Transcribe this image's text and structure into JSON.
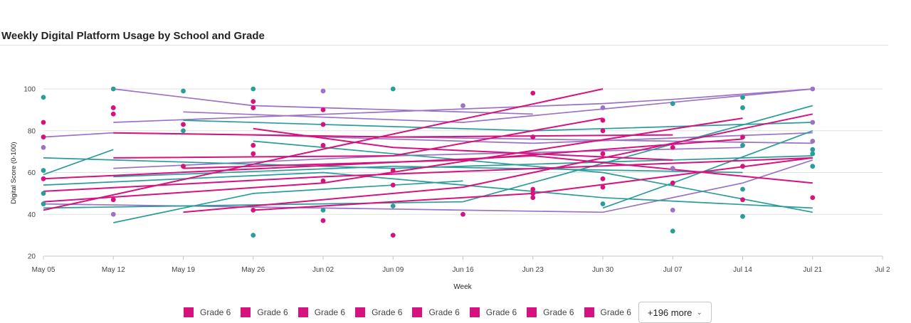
{
  "title": "Weekly Digital Platform Usage by School and Grade",
  "colors": {
    "teal": "#2a9d9a",
    "purple": "#9b72c4",
    "magenta": "#d6127f"
  },
  "legend": {
    "items": [
      {
        "label": "Grade 6",
        "color": "#d6127f"
      },
      {
        "label": "Grade 6",
        "color": "#d6127f"
      },
      {
        "label": "Grade 6",
        "color": "#d6127f"
      },
      {
        "label": "Grade 6",
        "color": "#d6127f"
      },
      {
        "label": "Grade 6",
        "color": "#d6127f"
      },
      {
        "label": "Grade 6",
        "color": "#d6127f"
      },
      {
        "label": "Grade 6",
        "color": "#d6127f"
      },
      {
        "label": "Grade 6",
        "color": "#d6127f"
      }
    ],
    "more_label": "+196 more",
    "more_icon": "chevron-down-icon"
  },
  "chart_data": {
    "type": "line",
    "xlabel": "Week",
    "ylabel": "Digital Score (0-100)",
    "ylim": [
      20,
      100
    ],
    "yticks": [
      20,
      40,
      60,
      80,
      100
    ],
    "xlim": [
      "2024-05-05",
      "2024-07-28"
    ],
    "xticks": [
      "May 05",
      "May 12",
      "May 19",
      "May 26",
      "Jun 02",
      "Jun 09",
      "Jun 16",
      "Jun 23",
      "Jun 30",
      "Jul 07",
      "Jul 14",
      "Jul 21",
      "Jul 2"
    ],
    "grid": true,
    "legend_position": "bottom",
    "series_visible_note": "many overlapping school/grade series",
    "series": [
      {
        "color": "#9b72c4",
        "x": [
          "2024-05-05",
          "2024-05-12",
          "2024-07-21"
        ],
        "y": [
          77,
          79,
          74
        ]
      },
      {
        "color": "#9b72c4",
        "x": [
          "2024-05-12",
          "2024-05-26",
          "2024-06-23"
        ],
        "y": [
          100,
          92,
          88
        ]
      },
      {
        "color": "#9b72c4",
        "x": [
          "2024-05-19",
          "2024-06-16",
          "2024-07-21"
        ],
        "y": [
          89,
          84,
          100
        ]
      },
      {
        "color": "#9b72c4",
        "x": [
          "2024-05-12",
          "2024-06-30",
          "2024-07-07",
          "2024-07-21"
        ],
        "y": [
          84,
          93,
          95,
          100
        ]
      },
      {
        "color": "#9b72c4",
        "x": [
          "2024-05-05",
          "2024-06-02",
          "2024-06-30"
        ],
        "y": [
          45,
          43,
          41
        ]
      },
      {
        "color": "#9b72c4",
        "x": [
          "2024-05-12",
          "2024-06-09",
          "2024-07-14"
        ],
        "y": [
          62,
          68,
          72
        ]
      },
      {
        "color": "#9b72c4",
        "x": [
          "2024-05-26",
          "2024-06-23",
          "2024-07-21"
        ],
        "y": [
          78,
          74,
          79
        ]
      },
      {
        "color": "#9b72c4",
        "x": [
          "2024-06-30",
          "2024-07-14",
          "2024-07-21"
        ],
        "y": [
          41,
          55,
          66
        ]
      },
      {
        "color": "#2a9d9a",
        "x": [
          "2024-05-05",
          "2024-05-12"
        ],
        "y": [
          59,
          71
        ]
      },
      {
        "color": "#2a9d9a",
        "x": [
          "2024-05-05",
          "2024-06-09",
          "2024-07-21"
        ],
        "y": [
          67,
          62,
          68
        ]
      },
      {
        "color": "#2a9d9a",
        "x": [
          "2024-05-12",
          "2024-05-26",
          "2024-06-16"
        ],
        "y": [
          36,
          50,
          56
        ]
      },
      {
        "color": "#2a9d9a",
        "x": [
          "2024-05-05",
          "2024-06-16",
          "2024-07-21"
        ],
        "y": [
          43,
          46,
          92
        ]
      },
      {
        "color": "#2a9d9a",
        "x": [
          "2024-05-19",
          "2024-06-23",
          "2024-07-21"
        ],
        "y": [
          85,
          80,
          84
        ]
      },
      {
        "color": "#2a9d9a",
        "x": [
          "2024-05-12",
          "2024-06-09",
          "2024-07-14"
        ],
        "y": [
          58,
          63,
          60
        ]
      },
      {
        "color": "#2a9d9a",
        "x": [
          "2024-05-26",
          "2024-06-30",
          "2024-07-21"
        ],
        "y": [
          75,
          60,
          41
        ]
      },
      {
        "color": "#2a9d9a",
        "x": [
          "2024-06-30",
          "2024-07-07",
          "2024-07-21"
        ],
        "y": [
          43,
          55,
          80
        ]
      },
      {
        "color": "#2a9d9a",
        "x": [
          "2024-05-05",
          "2024-06-02",
          "2024-06-30",
          "2024-07-21"
        ],
        "y": [
          54,
          60,
          48,
          43
        ]
      },
      {
        "color": "#d6127f",
        "x": [
          "2024-05-05",
          "2024-05-26",
          "2024-06-30"
        ],
        "y": [
          42,
          64,
          100
        ]
      },
      {
        "color": "#d6127f",
        "x": [
          "2024-05-05",
          "2024-06-02",
          "2024-07-21"
        ],
        "y": [
          51,
          58,
          67
        ]
      },
      {
        "color": "#d6127f",
        "x": [
          "2024-05-12",
          "2024-06-09",
          "2024-07-07"
        ],
        "y": [
          79,
          77,
          78
        ]
      },
      {
        "color": "#d6127f",
        "x": [
          "2024-05-19",
          "2024-06-16",
          "2024-07-21"
        ],
        "y": [
          41,
          53,
          88
        ]
      },
      {
        "color": "#d6127f",
        "x": [
          "2024-05-05",
          "2024-06-02",
          "2024-07-14"
        ],
        "y": [
          46,
          55,
          86
        ]
      },
      {
        "color": "#d6127f",
        "x": [
          "2024-05-12",
          "2024-06-09",
          "2024-06-30"
        ],
        "y": [
          67,
          68,
          86
        ]
      },
      {
        "color": "#d6127f",
        "x": [
          "2024-05-26",
          "2024-06-23",
          "2024-07-21"
        ],
        "y": [
          42,
          50,
          67
        ]
      },
      {
        "color": "#d6127f",
        "x": [
          "2024-05-19",
          "2024-06-16",
          "2024-07-14"
        ],
        "y": [
          62,
          66,
          76
        ]
      },
      {
        "color": "#d6127f",
        "x": [
          "2024-05-05",
          "2024-06-23",
          "2024-07-21"
        ],
        "y": [
          57,
          68,
          55
        ]
      },
      {
        "color": "#d6127f",
        "x": [
          "2024-05-26",
          "2024-06-09",
          "2024-07-07"
        ],
        "y": [
          81,
          72,
          66
        ]
      }
    ],
    "points": [
      {
        "x": "2024-05-05",
        "y": 96,
        "color": "#2a9d9a"
      },
      {
        "x": "2024-05-05",
        "y": 84,
        "color": "#d6127f"
      },
      {
        "x": "2024-05-05",
        "y": 77,
        "color": "#d6127f"
      },
      {
        "x": "2024-05-05",
        "y": 72,
        "color": "#9b72c4"
      },
      {
        "x": "2024-05-05",
        "y": 61,
        "color": "#2a9d9a"
      },
      {
        "x": "2024-05-05",
        "y": 57,
        "color": "#d6127f"
      },
      {
        "x": "2024-05-05",
        "y": 50,
        "color": "#2a9d9a"
      },
      {
        "x": "2024-05-05",
        "y": 45,
        "color": "#2a9d9a"
      },
      {
        "x": "2024-05-12",
        "y": 100,
        "color": "#2a9d9a"
      },
      {
        "x": "2024-05-12",
        "y": 91,
        "color": "#d6127f"
      },
      {
        "x": "2024-05-12",
        "y": 88,
        "color": "#d6127f"
      },
      {
        "x": "2024-05-12",
        "y": 47,
        "color": "#d6127f"
      },
      {
        "x": "2024-05-12",
        "y": 40,
        "color": "#9b72c4"
      },
      {
        "x": "2024-05-19",
        "y": 99,
        "color": "#2a9d9a"
      },
      {
        "x": "2024-05-19",
        "y": 83,
        "color": "#d6127f"
      },
      {
        "x": "2024-05-19",
        "y": 80,
        "color": "#2a9d9a"
      },
      {
        "x": "2024-05-19",
        "y": 63,
        "color": "#d6127f"
      },
      {
        "x": "2024-05-26",
        "y": 100,
        "color": "#2a9d9a"
      },
      {
        "x": "2024-05-26",
        "y": 94,
        "color": "#d6127f"
      },
      {
        "x": "2024-05-26",
        "y": 91,
        "color": "#d6127f"
      },
      {
        "x": "2024-05-26",
        "y": 73,
        "color": "#d6127f"
      },
      {
        "x": "2024-05-26",
        "y": 69,
        "color": "#d6127f"
      },
      {
        "x": "2024-05-26",
        "y": 42,
        "color": "#d6127f"
      },
      {
        "x": "2024-05-26",
        "y": 30,
        "color": "#2a9d9a"
      },
      {
        "x": "2024-06-02",
        "y": 99,
        "color": "#9b72c4"
      },
      {
        "x": "2024-06-02",
        "y": 90,
        "color": "#d6127f"
      },
      {
        "x": "2024-06-02",
        "y": 83,
        "color": "#d6127f"
      },
      {
        "x": "2024-06-02",
        "y": 73,
        "color": "#d6127f"
      },
      {
        "x": "2024-06-02",
        "y": 56,
        "color": "#d6127f"
      },
      {
        "x": "2024-06-02",
        "y": 42,
        "color": "#2a9d9a"
      },
      {
        "x": "2024-06-02",
        "y": 37,
        "color": "#d6127f"
      },
      {
        "x": "2024-06-09",
        "y": 100,
        "color": "#2a9d9a"
      },
      {
        "x": "2024-06-09",
        "y": 61,
        "color": "#d6127f"
      },
      {
        "x": "2024-06-09",
        "y": 54,
        "color": "#d6127f"
      },
      {
        "x": "2024-06-09",
        "y": 44,
        "color": "#2a9d9a"
      },
      {
        "x": "2024-06-09",
        "y": 30,
        "color": "#d6127f"
      },
      {
        "x": "2024-06-16",
        "y": 92,
        "color": "#9b72c4"
      },
      {
        "x": "2024-06-16",
        "y": 40,
        "color": "#d6127f"
      },
      {
        "x": "2024-06-23",
        "y": 98,
        "color": "#d6127f"
      },
      {
        "x": "2024-06-23",
        "y": 77,
        "color": "#d6127f"
      },
      {
        "x": "2024-06-23",
        "y": 52,
        "color": "#d6127f"
      },
      {
        "x": "2024-06-23",
        "y": 50,
        "color": "#d6127f"
      },
      {
        "x": "2024-06-23",
        "y": 48,
        "color": "#d6127f"
      },
      {
        "x": "2024-06-30",
        "y": 91,
        "color": "#9b72c4"
      },
      {
        "x": "2024-06-30",
        "y": 85,
        "color": "#d6127f"
      },
      {
        "x": "2024-06-30",
        "y": 80,
        "color": "#d6127f"
      },
      {
        "x": "2024-06-30",
        "y": 69,
        "color": "#d6127f"
      },
      {
        "x": "2024-06-30",
        "y": 57,
        "color": "#d6127f"
      },
      {
        "x": "2024-06-30",
        "y": 53,
        "color": "#d6127f"
      },
      {
        "x": "2024-06-30",
        "y": 45,
        "color": "#2a9d9a"
      },
      {
        "x": "2024-07-07",
        "y": 93,
        "color": "#2a9d9a"
      },
      {
        "x": "2024-07-07",
        "y": 72,
        "color": "#d6127f"
      },
      {
        "x": "2024-07-07",
        "y": 62,
        "color": "#9b72c4"
      },
      {
        "x": "2024-07-07",
        "y": 55,
        "color": "#d6127f"
      },
      {
        "x": "2024-07-07",
        "y": 42,
        "color": "#9b72c4"
      },
      {
        "x": "2024-07-07",
        "y": 32,
        "color": "#2a9d9a"
      },
      {
        "x": "2024-07-14",
        "y": 96,
        "color": "#2a9d9a"
      },
      {
        "x": "2024-07-14",
        "y": 91,
        "color": "#2a9d9a"
      },
      {
        "x": "2024-07-14",
        "y": 77,
        "color": "#d6127f"
      },
      {
        "x": "2024-07-14",
        "y": 73,
        "color": "#2a9d9a"
      },
      {
        "x": "2024-07-14",
        "y": 63,
        "color": "#d6127f"
      },
      {
        "x": "2024-07-14",
        "y": 52,
        "color": "#2a9d9a"
      },
      {
        "x": "2024-07-14",
        "y": 47,
        "color": "#d6127f"
      },
      {
        "x": "2024-07-14",
        "y": 39,
        "color": "#2a9d9a"
      },
      {
        "x": "2024-07-21",
        "y": 100,
        "color": "#9b72c4"
      },
      {
        "x": "2024-07-21",
        "y": 84,
        "color": "#9b72c4"
      },
      {
        "x": "2024-07-21",
        "y": 75,
        "color": "#9b72c4"
      },
      {
        "x": "2024-07-21",
        "y": 71,
        "color": "#2a9d9a"
      },
      {
        "x": "2024-07-21",
        "y": 69,
        "color": "#2a9d9a"
      },
      {
        "x": "2024-07-21",
        "y": 63,
        "color": "#2a9d9a"
      },
      {
        "x": "2024-07-21",
        "y": 48,
        "color": "#d6127f"
      }
    ]
  }
}
